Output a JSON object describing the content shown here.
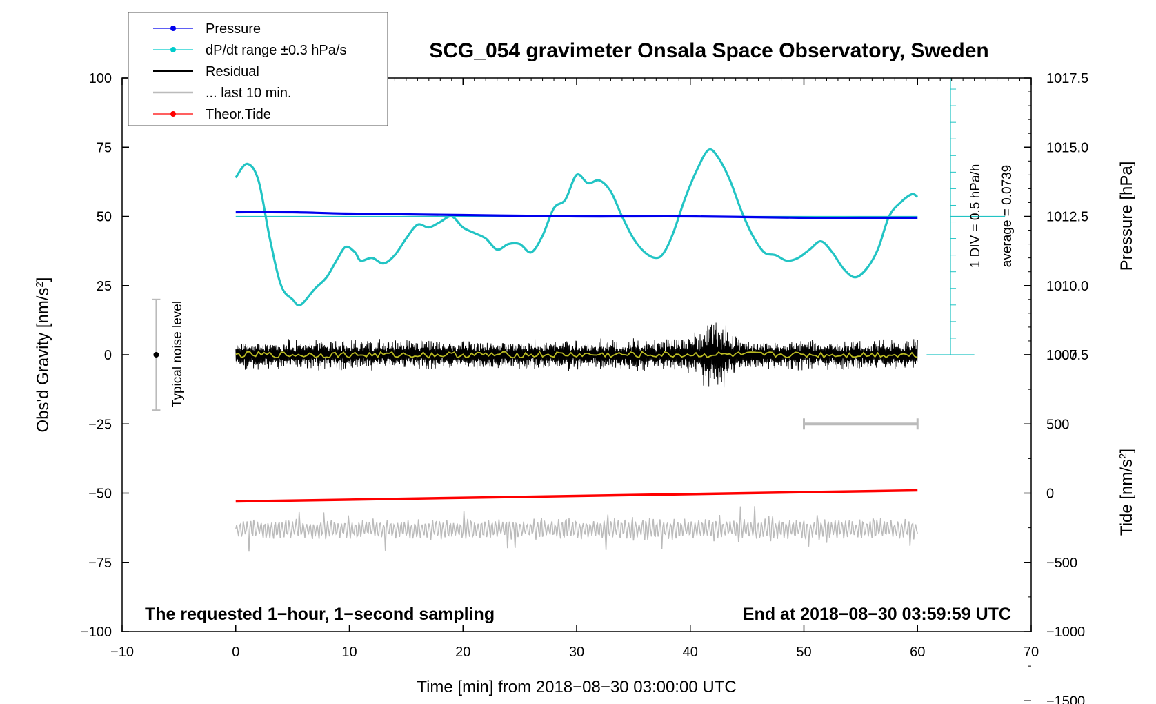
{
  "chart_data": {
    "type": "line",
    "title": "SCG_054 gravimeter Onsala Space Observatory, Sweden",
    "xlabel": "Time [min] from 2018−08−30 03:00:00 UTC",
    "ylabel_left": "Obs'd Gravity [nm/s",
    "ylabel_left_sup": "2",
    "ylabel_left_tail": "]",
    "ylabel_right_top": "Pressure [hPa]",
    "ylabel_right_bottom": "Tide [nm/s",
    "ylabel_right_bottom_sup": "2",
    "ylabel_right_bottom_tail": "]",
    "xlim": [
      -10,
      70
    ],
    "ylim": [
      -100,
      100
    ],
    "x_ticks": [
      -10,
      0,
      10,
      20,
      30,
      40,
      50,
      60,
      70
    ],
    "x_tick_labels": [
      "−10",
      "0",
      "10",
      "20",
      "30",
      "40",
      "50",
      "60",
      "70"
    ],
    "y_ticks": [
      -100,
      -75,
      -50,
      -25,
      0,
      25,
      50,
      75,
      100
    ],
    "y_tick_labels": [
      "−100",
      "−75",
      "−50",
      "−25",
      "0",
      "25",
      "50",
      "75",
      "100"
    ],
    "pressure_axis": {
      "ticks": [
        1007.5,
        1010.0,
        1012.5,
        1015.0,
        1017.5
      ],
      "tick_labels": [
        "1007.5",
        "1010.0",
        "1012.5",
        "1015.0",
        "1017.5"
      ],
      "gravity_at_1012_5": 50,
      "gravity_per_hpa": 10
    },
    "tide_axis": {
      "ticks": [
        -1500,
        -1000,
        -500,
        0,
        500,
        1000
      ],
      "tick_labels": [
        "−1500",
        "−1000",
        "−500",
        "0",
        "500",
        "1000"
      ],
      "gravity_at_zero": -50,
      "gravity_per_unit": 0.05
    },
    "legend": {
      "placement": "top-left",
      "entries": [
        {
          "label": "Pressure",
          "color": "#0000ee",
          "marker": true
        },
        {
          "label": "dP/dt range ±0.3 hPa/s",
          "color": "#00cccc",
          "marker": true
        },
        {
          "label": "Residual",
          "color": "#000000",
          "marker": false
        },
        {
          "label": "... last 10 min.",
          "color": "#bbbbbb",
          "marker": false
        },
        {
          "label": "Theor.Tide",
          "color": "#ff0000",
          "marker": true
        }
      ]
    },
    "annotations": {
      "bottom_left": "The requested 1−hour, 1−second sampling",
      "bottom_right": "End at 2018−08−30 03:59:59 UTC",
      "noise_label": "Typical noise level",
      "div_label": "1 DIV = 0.5 hPa/h",
      "average_label": "average = 0.0739"
    },
    "noise_bar": {
      "x": -7,
      "center": 0,
      "low": -20,
      "high": 20
    },
    "last10_bar": {
      "x_start": 50,
      "x_end": 60,
      "y": -25
    },
    "series": [
      {
        "name": "Pressure",
        "color": "#0000ee",
        "x": [
          0,
          5,
          10,
          20,
          30,
          40,
          50,
          55,
          60
        ],
        "y": [
          1012.65,
          1012.65,
          1012.6,
          1012.55,
          1012.5,
          1012.5,
          1012.45,
          1012.45,
          1012.45
        ]
      },
      {
        "name": "dP/dt range ±0.3 hPa/s",
        "color": "#22c4c4",
        "x": [
          0,
          1,
          2,
          3,
          4,
          5,
          5.7,
          7,
          8,
          9,
          9.7,
          10.5,
          11,
          12,
          13,
          14,
          15,
          16,
          17,
          18,
          19,
          20,
          21,
          22,
          23,
          24,
          25,
          26,
          27,
          28,
          29,
          30,
          31,
          32,
          33,
          34,
          35,
          36,
          37,
          37.7,
          38.5,
          39.5,
          40.5,
          41.6,
          42.5,
          43.5,
          44.5,
          45.5,
          46.5,
          47.5,
          48.5,
          49.5,
          50.5,
          51.5,
          52.5,
          53.5,
          54.5,
          55.5,
          56.5,
          57.5,
          58.5,
          59.5,
          60
        ],
        "y": [
          64,
          69,
          63,
          42,
          25,
          20,
          18,
          24,
          28,
          35,
          39,
          37,
          34,
          35,
          33,
          36,
          42,
          47,
          46,
          48,
          50,
          46,
          44,
          42,
          38,
          40,
          40,
          37,
          43,
          53,
          56,
          65,
          62,
          63,
          59,
          50,
          42,
          37,
          35,
          37,
          44,
          56,
          66,
          74,
          71,
          63,
          52,
          43,
          37,
          36,
          34,
          35,
          38,
          41,
          37,
          31,
          28,
          31,
          38,
          50,
          55,
          58,
          57
        ]
      },
      {
        "name": "Residual",
        "color": "#000000",
        "x_range": [
          0,
          60
        ],
        "typical_amplitude": 5,
        "max_amplitude": 16,
        "burst_center_x": 42,
        "center": 0
      },
      {
        "name": "moving average",
        "color": "#bbbb22",
        "x_range": [
          0,
          60
        ],
        "center": 0
      },
      {
        "name": "... last 10 min.",
        "color": "#bbbbbb",
        "x_range": [
          0,
          60
        ],
        "center": -63,
        "typical_amplitude": 4
      },
      {
        "name": "Theor.Tide",
        "color": "#ff0000",
        "x": [
          0,
          60
        ],
        "y": [
          -53,
          -49
        ]
      }
    ]
  }
}
